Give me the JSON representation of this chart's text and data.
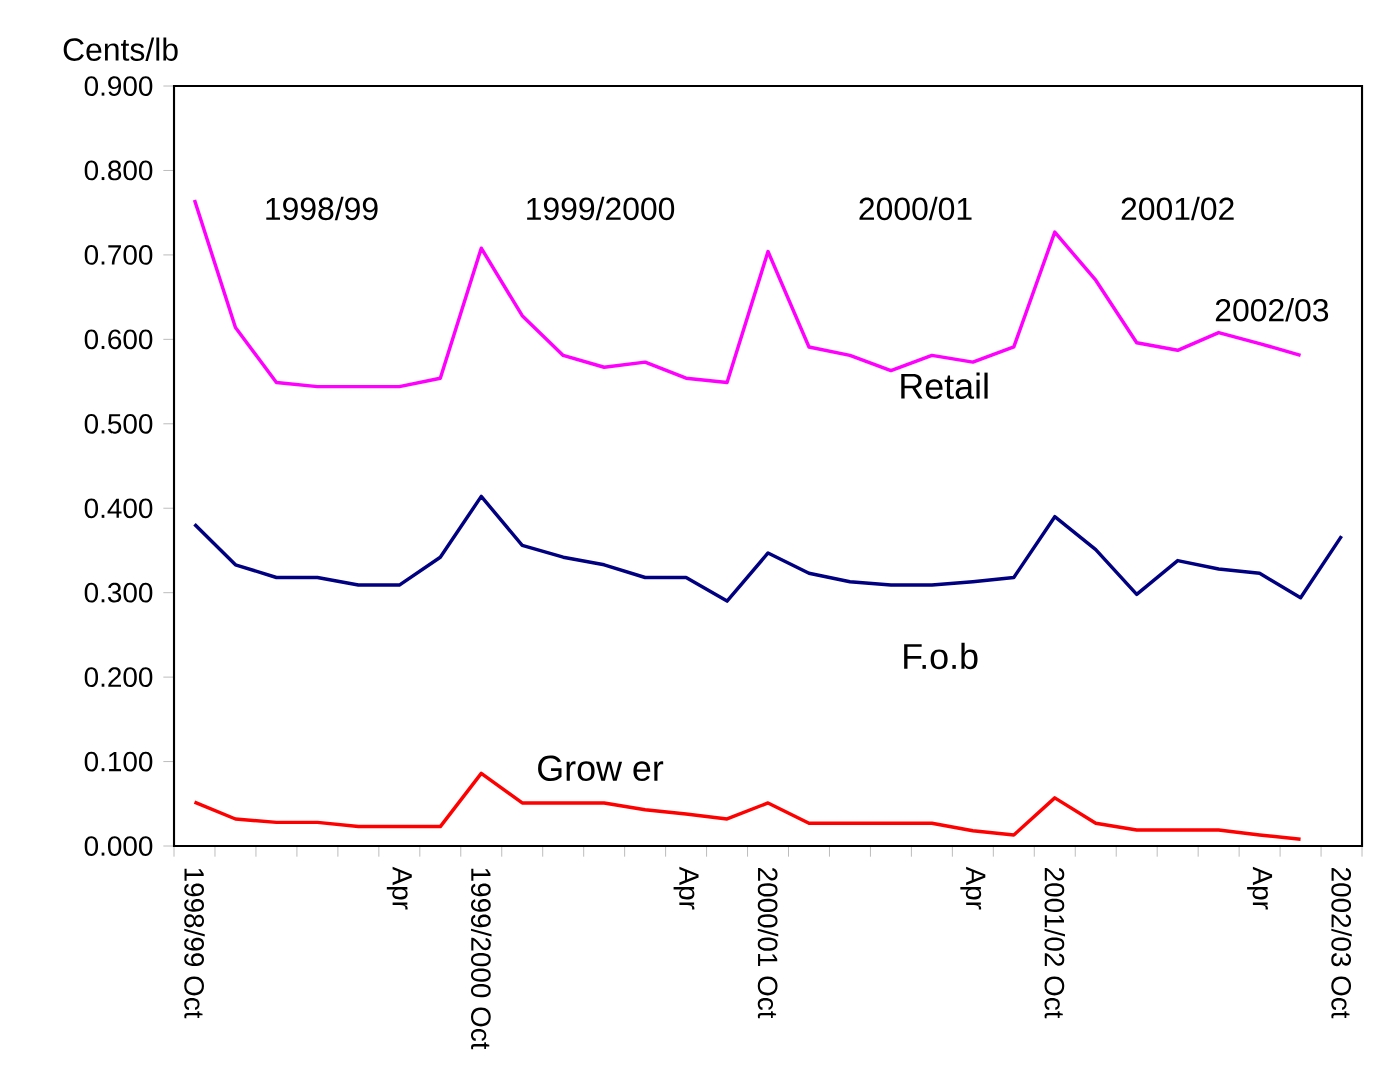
{
  "chart_data": {
    "type": "line",
    "ylabel": "Cents/lb",
    "categories": [
      "1998/99 Oct",
      null,
      null,
      null,
      null,
      "Apr",
      null,
      "1999/2000 Oct",
      null,
      null,
      null,
      null,
      "Apr",
      null,
      "2000/01 Oct",
      null,
      null,
      null,
      null,
      "Apr",
      null,
      "2001/02 Oct",
      null,
      null,
      null,
      null,
      "Apr",
      null,
      "2002/03 Oct"
    ],
    "series": [
      {
        "name": "Retail",
        "color": "#ff00ff",
        "values": [
          0.765,
          0.614,
          0.549,
          0.544,
          0.544,
          0.544,
          0.554,
          0.708,
          0.628,
          0.581,
          0.567,
          0.573,
          0.554,
          0.549,
          0.704,
          0.591,
          0.581,
          0.563,
          0.581,
          0.573,
          0.591,
          0.727,
          0.67,
          0.596,
          0.587,
          0.608,
          0.595,
          0.581,
          null
        ]
      },
      {
        "name": "F.o.b",
        "color": "#000080",
        "values": [
          0.381,
          0.333,
          0.318,
          0.318,
          0.309,
          0.309,
          0.342,
          0.414,
          0.356,
          0.342,
          0.333,
          0.318,
          0.318,
          0.29,
          0.347,
          0.323,
          0.313,
          0.309,
          0.309,
          0.313,
          0.318,
          0.39,
          0.351,
          0.298,
          0.338,
          0.328,
          0.323,
          0.294,
          0.367
        ]
      },
      {
        "name": "Grow er",
        "color": "#ff0000",
        "values": [
          0.052,
          0.032,
          0.028,
          0.028,
          0.023,
          0.023,
          0.023,
          0.086,
          0.051,
          0.051,
          0.051,
          0.043,
          0.038,
          0.032,
          0.051,
          0.027,
          0.027,
          0.027,
          0.027,
          0.018,
          0.013,
          0.057,
          0.027,
          0.019,
          0.019,
          0.019,
          0.013,
          0.008,
          null
        ]
      }
    ],
    "ylim": [
      0,
      0.9
    ],
    "yticks": [
      {
        "value": 0,
        "label": "0.000"
      },
      {
        "value": 0.1,
        "label": "0.100"
      },
      {
        "value": 0.2,
        "label": "0.200"
      },
      {
        "value": 0.3,
        "label": "0.300"
      },
      {
        "value": 0.4,
        "label": "0.400"
      },
      {
        "value": 0.5,
        "label": "0.500"
      },
      {
        "value": 0.6,
        "label": "0.600"
      },
      {
        "value": 0.7,
        "label": "0.700"
      },
      {
        "value": 0.8,
        "label": "0.800"
      },
      {
        "value": 0.9,
        "label": "0.900"
      }
    ],
    "annotations": [
      "1998/99",
      "1999/2000",
      "2000/01",
      "2001/02",
      "2002/03"
    ],
    "grid": false,
    "marker": "none",
    "line_style": "solid"
  }
}
